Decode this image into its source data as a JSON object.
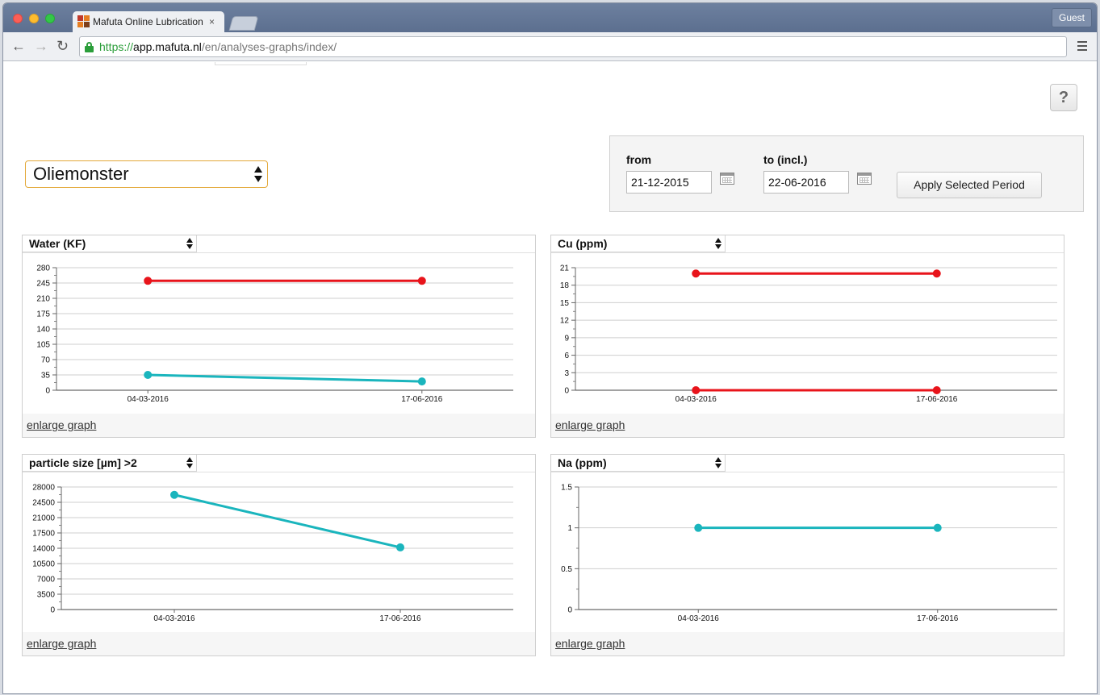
{
  "browser": {
    "tab_title": "Mafuta Online Lubrication S",
    "tab_close": "×",
    "guest_label": "Guest",
    "url": {
      "scheme": "https://",
      "host": "app.mafuta.nl",
      "path": "/en/analyses-graphs/index/"
    }
  },
  "page": {
    "help_label": "?",
    "sample_select": {
      "value": "Oliemonster"
    },
    "period": {
      "from_label": "from",
      "from_value": "21-12-2015",
      "to_label": "to (incl.)",
      "to_value": "22-06-2016",
      "apply_label": "Apply Selected Period"
    },
    "enlarge_label": "enlarge graph"
  },
  "colors": {
    "limit": "#e8141b",
    "measured": "#1ab5bd",
    "grid": "#cfcfcf",
    "accent_select_border": "#e3a93a"
  },
  "chart_data": [
    {
      "type": "line",
      "param": "Water (KF)",
      "categories": [
        "04-03-2016",
        "17-06-2016"
      ],
      "ylim": [
        0,
        280
      ],
      "yticks": [
        0,
        35,
        70,
        105,
        140,
        175,
        210,
        245,
        280
      ],
      "series": [
        {
          "color": "#e8141b",
          "values": [
            250,
            250
          ]
        },
        {
          "color": "#1ab5bd",
          "values": [
            35,
            20
          ]
        }
      ]
    },
    {
      "type": "line",
      "param": "Cu (ppm)",
      "categories": [
        "04-03-2016",
        "17-06-2016"
      ],
      "ylim": [
        0,
        21
      ],
      "yticks": [
        0,
        3,
        6,
        9,
        12,
        15,
        18,
        21
      ],
      "series": [
        {
          "color": "#e8141b",
          "values": [
            20,
            20
          ]
        },
        {
          "color": "#e8141b",
          "values": [
            0,
            0
          ]
        }
      ]
    },
    {
      "type": "line",
      "param": "particle size [µm] >2",
      "categories": [
        "04-03-2016",
        "17-06-2016"
      ],
      "ylim": [
        0,
        28000
      ],
      "yticks": [
        0,
        3500,
        7000,
        10500,
        14000,
        17500,
        21000,
        24500,
        28000
      ],
      "series": [
        {
          "color": "#1ab5bd",
          "values": [
            26200,
            14200
          ]
        }
      ]
    },
    {
      "type": "line",
      "param": "Na (ppm)",
      "categories": [
        "04-03-2016",
        "17-06-2016"
      ],
      "ylim": [
        0,
        1.5
      ],
      "yticks": [
        0,
        0.5,
        1,
        1.5
      ],
      "series": [
        {
          "color": "#1ab5bd",
          "values": [
            1,
            1
          ]
        }
      ]
    }
  ]
}
